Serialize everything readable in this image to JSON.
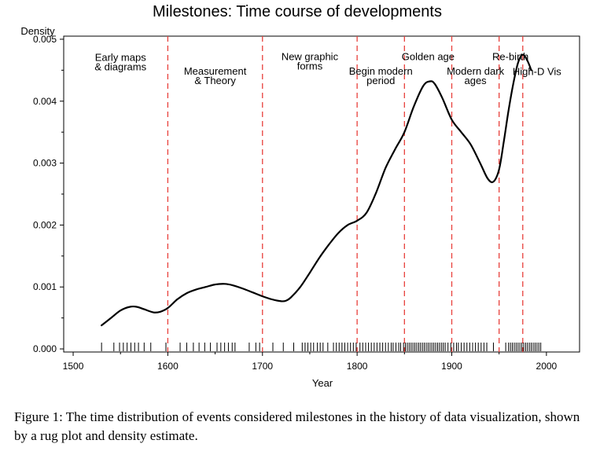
{
  "chart_data": {
    "type": "line",
    "title": "Milestones: Time course of developments",
    "xlabel": "Year",
    "ylabel": "Density",
    "xlim": [
      1490,
      2035
    ],
    "ylim": [
      -5e-05,
      0.00505
    ],
    "xticks": [
      1500,
      1600,
      1700,
      1800,
      1900,
      2000
    ],
    "yticks": [
      0.0,
      0.001,
      0.002,
      0.003,
      0.004,
      0.005
    ],
    "ytick_labels": [
      "0.000",
      "0.001",
      "0.002",
      "0.003",
      "0.004",
      "0.005"
    ],
    "grid": false,
    "series": [
      {
        "x": [
          1530,
          1540,
          1550,
          1560,
          1567,
          1575,
          1585,
          1592,
          1600,
          1610,
          1620,
          1630,
          1640,
          1650,
          1660,
          1668,
          1680,
          1690,
          1700,
          1710,
          1720,
          1725,
          1730,
          1740,
          1750,
          1760,
          1770,
          1780,
          1790,
          1800,
          1810,
          1820,
          1830,
          1840,
          1850,
          1860,
          1870,
          1877,
          1882,
          1890,
          1900,
          1910,
          1920,
          1930,
          1938,
          1944,
          1950,
          1955,
          1960,
          1965,
          1970,
          1975,
          1980,
          1984
        ],
        "y": [
          0.00038,
          0.0005,
          0.00062,
          0.00068,
          0.00068,
          0.00064,
          0.00059,
          0.0006,
          0.00066,
          0.0008,
          0.0009,
          0.00096,
          0.001,
          0.00104,
          0.00105,
          0.00103,
          0.00097,
          0.00091,
          0.00085,
          0.0008,
          0.00077,
          0.00078,
          0.00083,
          0.001,
          0.00123,
          0.00147,
          0.00168,
          0.00187,
          0.002,
          0.00207,
          0.0022,
          0.00252,
          0.00292,
          0.00322,
          0.0035,
          0.00392,
          0.00425,
          0.00432,
          0.00428,
          0.00405,
          0.0037,
          0.0035,
          0.0033,
          0.003,
          0.00275,
          0.0027,
          0.0029,
          0.00335,
          0.00385,
          0.00428,
          0.00462,
          0.00475,
          0.00465,
          0.0045
        ]
      }
    ],
    "period_lines": [
      1600,
      1700,
      1800,
      1850,
      1900,
      1950,
      1975
    ],
    "period_labels": [
      {
        "lines": [
          "Early maps",
          "& diagrams"
        ],
        "x": 1550,
        "y": 0.00465
      },
      {
        "lines": [
          "Measurement",
          "& Theory"
        ],
        "x": 1650,
        "y": 0.00443
      },
      {
        "lines": [
          "New graphic",
          "forms"
        ],
        "x": 1750,
        "y": 0.00466
      },
      {
        "lines": [
          "Begin modern",
          "period"
        ],
        "x": 1825,
        "y": 0.00443
      },
      {
        "lines": [
          "Golden age"
        ],
        "x": 1875,
        "y": 0.00466
      },
      {
        "lines": [
          "Modern dark",
          "ages"
        ],
        "x": 1925,
        "y": 0.00443
      },
      {
        "lines": [
          "Re-birth"
        ],
        "x": 1962,
        "y": 0.00466
      },
      {
        "lines": [
          "High-D Vis"
        ],
        "x": 1990,
        "y": 0.00442
      }
    ],
    "rug_years": [
      1530,
      1543,
      1549,
      1553,
      1557,
      1561,
      1565,
      1569,
      1575,
      1582,
      1598,
      1613,
      1620,
      1627,
      1633,
      1639,
      1645,
      1652,
      1656,
      1660,
      1664,
      1668,
      1671,
      1686,
      1693,
      1697,
      1711,
      1722,
      1733,
      1742,
      1745,
      1748,
      1751,
      1754,
      1758,
      1761,
      1764,
      1769,
      1775,
      1778,
      1781,
      1784,
      1787,
      1790,
      1793,
      1796,
      1799,
      1803,
      1806,
      1809,
      1812,
      1815,
      1818,
      1821,
      1824,
      1827,
      1830,
      1833,
      1836,
      1838,
      1841,
      1844,
      1846,
      1849,
      1851,
      1853,
      1855,
      1857,
      1859,
      1861,
      1863,
      1865,
      1867,
      1869,
      1871,
      1873,
      1875,
      1877,
      1879,
      1881,
      1883,
      1885,
      1887,
      1889,
      1891,
      1893,
      1896,
      1899,
      1902,
      1905,
      1907,
      1910,
      1913,
      1916,
      1919,
      1922,
      1925,
      1928,
      1931,
      1934,
      1937,
      1944,
      1957,
      1960,
      1962,
      1964,
      1966,
      1968,
      1970,
      1972,
      1974,
      1976,
      1978,
      1980,
      1982,
      1984,
      1986,
      1988,
      1990,
      1992,
      1994
    ]
  },
  "caption": "Figure 1: The time distribution of events considered milestones in the history of data visualization, shown by a rug plot and density estimate."
}
